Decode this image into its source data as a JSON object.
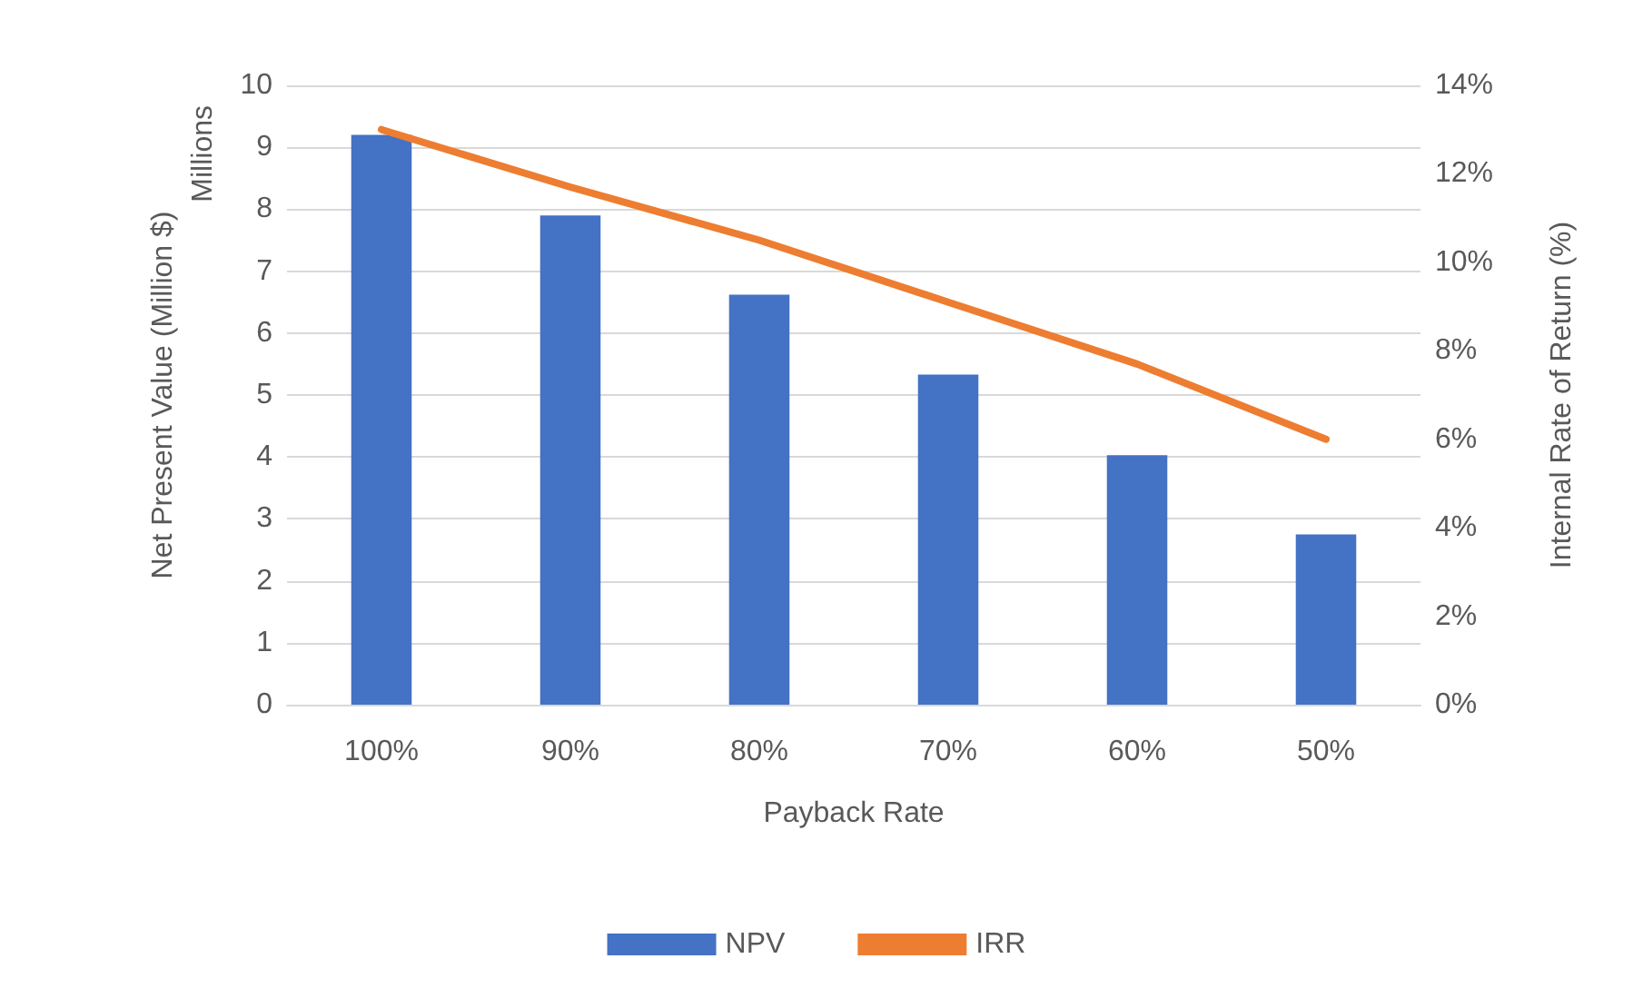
{
  "chart_data": {
    "type": "bar",
    "categories": [
      "100%",
      "90%",
      "80%",
      "70%",
      "60%",
      "50%"
    ],
    "xlabel": "Payback Rate",
    "ylabel": "Net Present Value (Million $)",
    "y2label": "Internal Rate of Return (%)",
    "annotations": [
      "Millions"
    ],
    "series": [
      {
        "name": "NPV",
        "color": "#4472c4",
        "values": [
          9.2,
          7.9,
          6.62,
          5.33,
          4.03,
          2.75
        ]
      },
      {
        "name": "IRR",
        "type": "line",
        "axis": "y2",
        "color": "#ed7d31",
        "marker": "none",
        "values": [
          13.0,
          11.7,
          10.5,
          9.1,
          7.7,
          6.0
        ]
      }
    ],
    "ylim": [
      0,
      10
    ],
    "yticks": [
      0,
      1,
      2,
      3,
      4,
      5,
      6,
      7,
      8,
      9,
      10
    ],
    "y2lim": [
      0,
      14
    ],
    "y2ticks": [
      {
        "value": 0,
        "label": "0%"
      },
      {
        "value": 2,
        "label": "2%"
      },
      {
        "value": 4,
        "label": "4%"
      },
      {
        "value": 6,
        "label": "6%"
      },
      {
        "value": 8,
        "label": "8%"
      },
      {
        "value": 10,
        "label": "10%"
      },
      {
        "value": 12,
        "label": "12%"
      },
      {
        "value": 14,
        "label": "14%"
      }
    ],
    "grid": "y",
    "legend": "bottom"
  }
}
